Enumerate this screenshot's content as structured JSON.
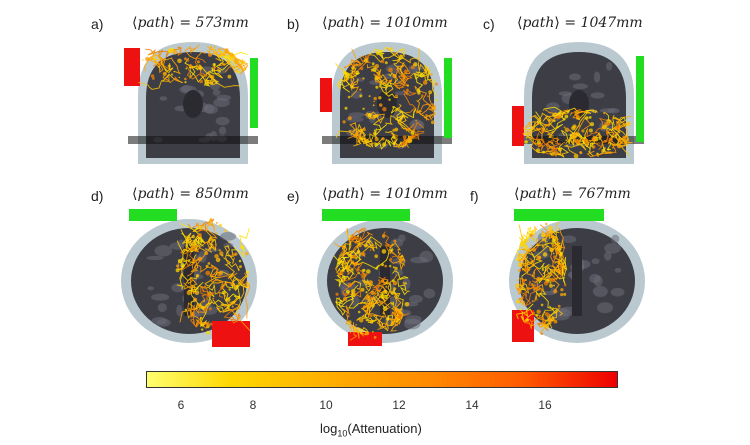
{
  "figure": {
    "panels": [
      {
        "letter": "a)",
        "path_text": "573mm",
        "view": "coronal"
      },
      {
        "letter": "b)",
        "path_text": "1010mm",
        "view": "coronal"
      },
      {
        "letter": "c)",
        "path_text": "1047mm",
        "view": "coronal"
      },
      {
        "letter": "d)",
        "path_text": "850mm",
        "view": "axial"
      },
      {
        "letter": "e)",
        "path_text": "1010mm",
        "view": "axial"
      },
      {
        "letter": "f)",
        "path_text": "767mm",
        "view": "axial"
      }
    ],
    "path_symbol": "path",
    "colorbar": {
      "ticks": [
        "6",
        "8",
        "10",
        "12",
        "14",
        "16"
      ],
      "label_prefix": "log",
      "label_sub": "10",
      "label_suffix": "(Attenuation)",
      "colors": [
        "#ffff70",
        "#ffd700",
        "#ffb000",
        "#ff8a00",
        "#ff5a00",
        "#ee0000"
      ]
    }
  }
}
